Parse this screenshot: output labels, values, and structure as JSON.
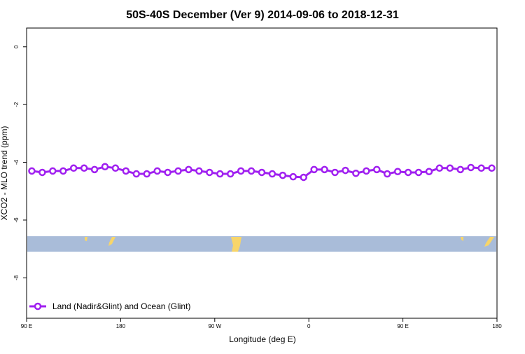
{
  "chart_data": {
    "type": "line",
    "title": "50S-40S December (Ver 9)   2014-09-06 to 2018-12-31",
    "x_label": "Longitude (deg E)",
    "y_label": "XCO2 - MLO trend (ppm)",
    "xlim": [
      90,
      540
    ],
    "ylim": [
      -9.4,
      0.65
    ],
    "xticks": [
      {
        "value": 90,
        "label": "90 E"
      },
      180,
      {
        "value": 270,
        "label": "90 W"
      },
      {
        "value": 360,
        "label": "0"
      },
      {
        "value": 450,
        "label": "90 E"
      },
      {
        "value": 540,
        "label": "180"
      }
    ],
    "yticks": [
      0,
      -2,
      -4,
      -6,
      -8
    ],
    "legend": "bottom-left",
    "series": [
      {
        "name": "Land (Nadir&Glint) and Ocean (Glint)",
        "color": "#a020f0",
        "x": [
          95,
          105,
          115,
          125,
          135,
          145,
          155,
          165,
          175,
          185,
          195,
          205,
          215,
          225,
          235,
          245,
          255,
          265,
          275,
          285,
          295,
          305,
          315,
          325,
          335,
          345,
          355,
          365,
          375,
          385,
          395,
          405,
          415,
          425,
          435,
          445,
          455,
          465,
          475,
          485,
          495,
          505,
          515,
          525,
          535
        ],
        "values": [
          -4.3,
          -4.35,
          -4.3,
          -4.3,
          -4.2,
          -4.2,
          -4.25,
          -4.15,
          -4.2,
          -4.3,
          -4.4,
          -4.4,
          -4.3,
          -4.35,
          -4.3,
          -4.25,
          -4.3,
          -4.35,
          -4.4,
          -4.4,
          -4.3,
          -4.3,
          -4.35,
          -4.4,
          -4.45,
          -4.5,
          -4.52,
          -4.25,
          -4.25,
          -4.35,
          -4.28,
          -4.38,
          -4.3,
          -4.25,
          -4.4,
          -4.32,
          -4.35,
          -4.35,
          -4.32,
          -4.2,
          -4.2,
          -4.25,
          -4.18,
          -4.2,
          -4.2
        ]
      }
    ]
  }
}
